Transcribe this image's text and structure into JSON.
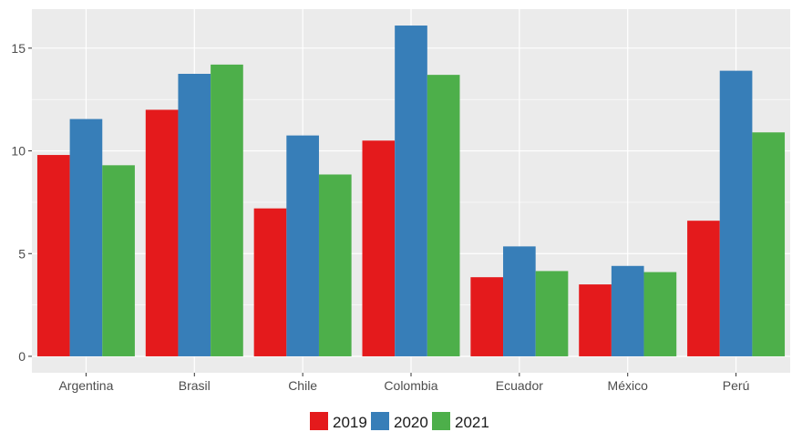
{
  "chart_data": {
    "type": "bar",
    "title": "",
    "xlabel": "",
    "ylabel": "",
    "categories": [
      "Argentina",
      "Brasil",
      "Chile",
      "Colombia",
      "Ecuador",
      "México",
      "Perú"
    ],
    "series": [
      {
        "name": "2019",
        "color": "#e41a1c",
        "values": [
          9.8,
          12.0,
          7.2,
          10.5,
          3.85,
          3.5,
          6.6
        ]
      },
      {
        "name": "2020",
        "color": "#377eb8",
        "values": [
          11.55,
          13.75,
          10.75,
          16.1,
          5.35,
          4.4,
          13.9
        ]
      },
      {
        "name": "2021",
        "color": "#4daf4a",
        "values": [
          9.3,
          14.2,
          8.85,
          13.7,
          4.15,
          4.1,
          10.9
        ]
      }
    ],
    "ylim": [
      -0.8,
      16.9
    ],
    "yticks": [
      0,
      5,
      10,
      15
    ],
    "grid": true,
    "legend": "bottom",
    "panel_background": "#ebebeb"
  }
}
